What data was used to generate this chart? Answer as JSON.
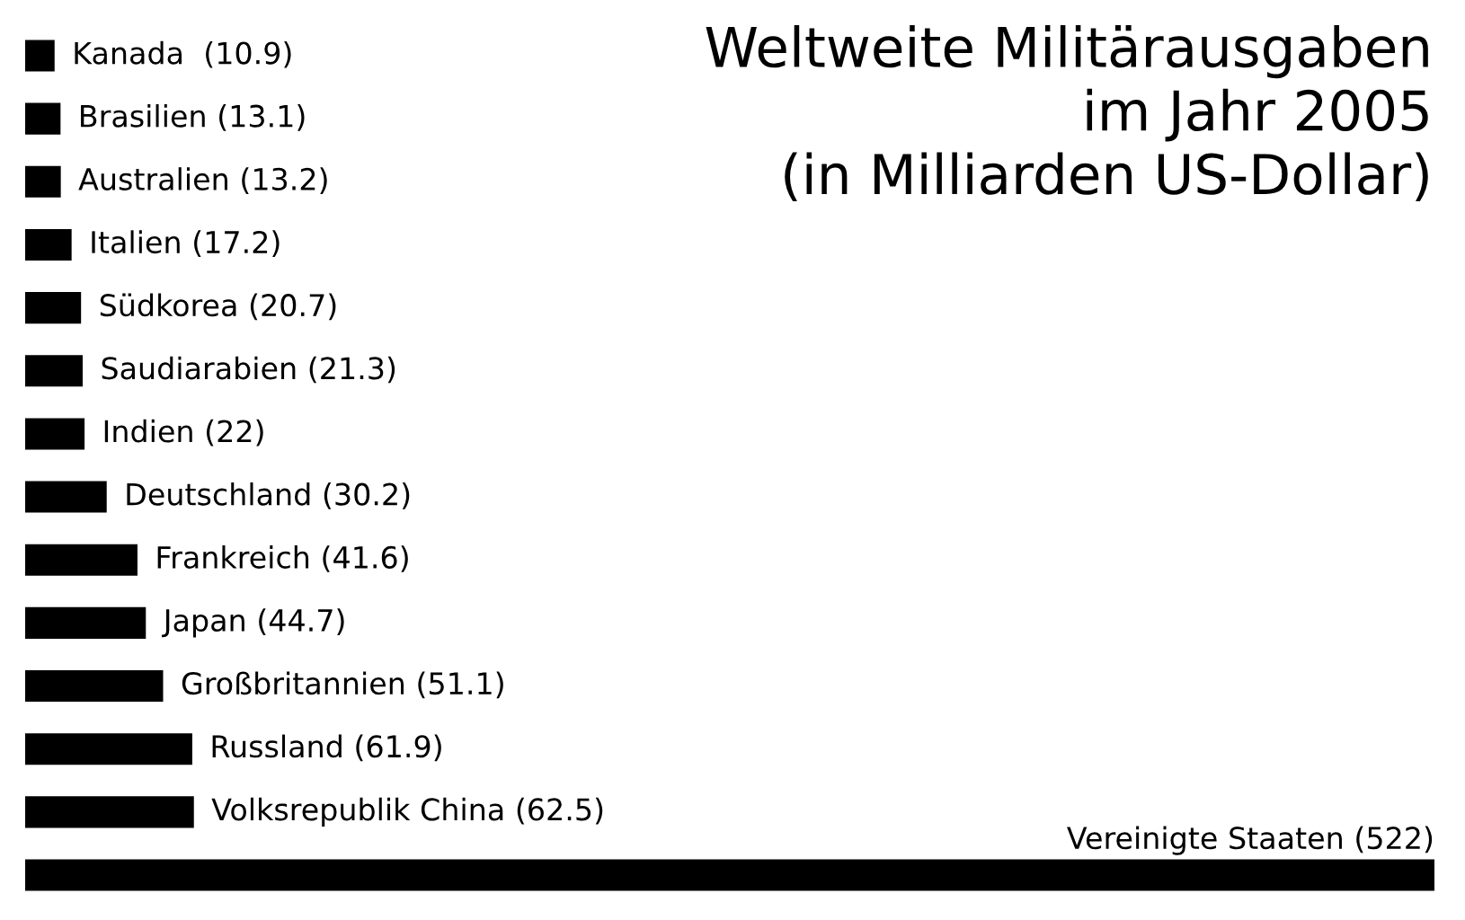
{
  "chart_data": {
    "type": "bar",
    "orientation": "horizontal",
    "title": "Weltweite Militärausgaben\nim Jahr 2005\n(in Milliarden US-Dollar)",
    "categories": [
      null,
      null,
      null,
      null,
      null,
      null,
      null,
      null,
      null,
      null,
      null,
      null,
      null,
      null
    ],
    "values": [
      10.9,
      13.1,
      13.2,
      17.2,
      20.7,
      21.3,
      22,
      30.2,
      41.6,
      44.7,
      51.1,
      61.9,
      62.5,
      522
    ],
    "value_labels": [
      "Kanada  (10.9)",
      "Brasilien (13.1)",
      "Australien (13.2)",
      "Italien (17.2)",
      "Südkorea (20.7)",
      "Saudiarabien (21.3)",
      "Indien (22)",
      "Deutschland (30.2)",
      "Frankreich (41.6)",
      "Japan (44.7)",
      "Großbritannien (51.1)",
      "Russland (61.9)",
      "Volksrepublik China (62.5)",
      "Vereinigte Staaten (522)"
    ],
    "color": "#000000"
  }
}
